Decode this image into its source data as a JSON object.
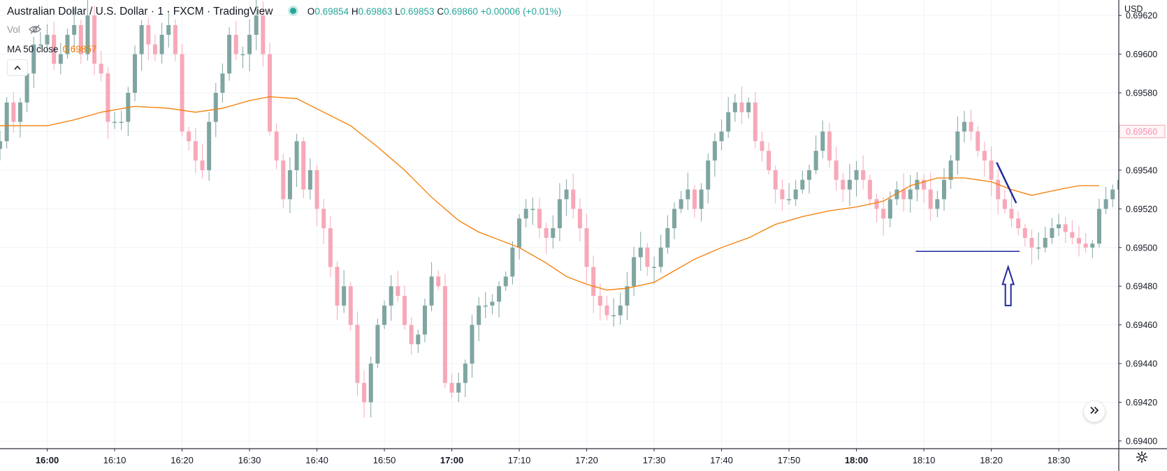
{
  "legend": {
    "title": "Australian Dollar / U.S. Dollar · 1 · FXCM · TradingView",
    "open_label": "O",
    "open": "0.69854",
    "high_label": "H",
    "high": "0.69863",
    "low_label": "L",
    "low": "0.69853",
    "close_label": "C",
    "close": "0.69860",
    "change": "+0.00006 (+0.01%)",
    "vol_label": "Vol",
    "ma_label": "MA 50 close",
    "ma_value": "0.69857"
  },
  "axis": {
    "currency": "USD",
    "price_ticks": [
      "0.69620",
      "0.69600",
      "0.69580",
      "0.69560",
      "0.69540",
      "0.69520",
      "0.69500",
      "0.69480",
      "0.69460",
      "0.69440",
      "0.69420",
      "0.69400"
    ],
    "last_price_label": "0.69560"
  },
  "icons": {
    "eye_off": "eye-off-icon",
    "collapse": "chevron-up-icon",
    "scroll_right": "double-chevron-right-icon",
    "settings": "gear-icon"
  },
  "colors": {
    "up": "#26a69a",
    "up_fill": "#7fa5a1",
    "down": "#f7a8b8",
    "ma": "#f57c00",
    "annotation": "#1f2a9e",
    "grid": "#f0f3fa"
  },
  "chart_data": {
    "type": "candlestick",
    "title": "Australian Dollar / U.S. Dollar · 1 · FXCM · TradingView",
    "interval": "1 minute",
    "ylim": [
      0.69396,
      0.69628
    ],
    "y_ticks": [
      0.6962,
      0.696,
      0.6958,
      0.6956,
      0.6954,
      0.6952,
      0.695,
      0.6948,
      0.6946,
      0.6944,
      0.6942,
      0.694
    ],
    "x_ticks": [
      {
        "time": "16:00",
        "bold": true,
        "minute": 0
      },
      {
        "time": "16:10",
        "bold": false,
        "minute": 10
      },
      {
        "time": "16:20",
        "bold": false,
        "minute": 20
      },
      {
        "time": "16:30",
        "bold": false,
        "minute": 30
      },
      {
        "time": "16:40",
        "bold": false,
        "minute": 40
      },
      {
        "time": "16:50",
        "bold": false,
        "minute": 50
      },
      {
        "time": "17:00",
        "bold": true,
        "minute": 60
      },
      {
        "time": "17:10",
        "bold": false,
        "minute": 70
      },
      {
        "time": "17:20",
        "bold": false,
        "minute": 80
      },
      {
        "time": "17:30",
        "bold": false,
        "minute": 90
      },
      {
        "time": "17:40",
        "bold": false,
        "minute": 100
      },
      {
        "time": "17:50",
        "bold": false,
        "minute": 110
      },
      {
        "time": "18:00",
        "bold": true,
        "minute": 120
      },
      {
        "time": "18:10",
        "bold": false,
        "minute": 130
      },
      {
        "time": "18:20",
        "bold": false,
        "minute": 140
      },
      {
        "time": "18:30",
        "bold": false,
        "minute": 150
      }
    ],
    "x_start_minute": -7,
    "last_price": 0.6956,
    "ohlc_anchors": [
      [
        0.69555,
        0.69575,
        0.69565,
        0.69575,
        0.6959,
        0.69605,
        0.69605,
        0.6961,
        0.69595,
        0.696,
        0.6961,
        0.69615,
        0.696
      ],
      [
        0.6962,
        0.69595,
        0.6959,
        0.69565,
        0.69565,
        0.69565,
        0.6958,
        0.696,
        0.69615,
        0.69605,
        0.696,
        0.6961,
        0.69615
      ],
      [
        0.696,
        0.6956,
        0.69555,
        0.69545,
        0.6954,
        0.69565,
        0.6958,
        0.6959,
        0.6961,
        0.696,
        0.696,
        0.6961,
        0.6962
      ],
      [
        0.696,
        0.6956,
        0.69545,
        0.69525,
        0.6954,
        0.69555,
        0.6953,
        0.6954,
        0.6952,
        0.6951,
        0.6949,
        0.6947,
        0.6948
      ],
      [
        0.6946,
        0.6943,
        0.6942,
        0.6944,
        0.6946,
        0.6947,
        0.6948,
        0.69475,
        0.6946,
        0.6945,
        0.69455,
        0.6947,
        0.69485
      ],
      [
        0.6948,
        0.6943,
        0.69425,
        0.6943,
        0.6944,
        0.6946,
        0.6947,
        0.6947,
        0.69472,
        0.6948,
        0.69485,
        0.695,
        0.69515
      ],
      [
        0.6952,
        0.6952,
        0.6951,
        0.69505,
        0.6951,
        0.69525,
        0.6953,
        0.6952,
        0.6951,
        0.6949,
        0.69475,
        0.6947,
        0.69465
      ],
      [
        0.69465,
        0.6947,
        0.6948,
        0.69495,
        0.695,
        0.6949,
        0.6949,
        0.695,
        0.6951,
        0.6952,
        0.69525,
        0.6953,
        0.6952
      ],
      [
        0.6953,
        0.69545,
        0.69555,
        0.6956,
        0.6957,
        0.69575,
        0.6957,
        0.69575,
        0.69555,
        0.6955,
        0.6954,
        0.6953,
        0.69525
      ],
      [
        0.69525,
        0.6953,
        0.69535,
        0.6954,
        0.6955,
        0.6956,
        0.69545,
        0.69535,
        0.6953,
        0.69535,
        0.6954,
        0.69535,
        0.69525
      ],
      [
        0.6952,
        0.69515,
        0.69525,
        0.6953,
        0.69525,
        0.6953,
        0.69535,
        0.6953,
        0.6952,
        0.69525,
        0.69535,
        0.69545,
        0.6956
      ],
      [
        0.69565,
        0.6956,
        0.6955,
        0.69545,
        0.69535,
        0.69525,
        0.6952,
        0.69515,
        0.6951,
        0.69505,
        0.695,
        0.695,
        0.69505
      ],
      [
        0.6951,
        0.69512,
        0.69508,
        0.69505,
        0.69502,
        0.695,
        0.69502,
        0.6952,
        0.69525,
        0.6953,
        0.69535,
        0.69545,
        0.69555
      ],
      [
        0.69565,
        0.6957,
        0.6956,
        0.69565,
        0.6956
      ]
    ],
    "moving_average": {
      "name": "MA 50 close",
      "points": [
        [
          -7,
          0.69563
        ],
        [
          -4,
          0.69563
        ],
        [
          0,
          0.69563
        ],
        [
          4,
          0.69566
        ],
        [
          8,
          0.6957
        ],
        [
          13,
          0.69573
        ],
        [
          18,
          0.69572
        ],
        [
          22,
          0.6957
        ],
        [
          26,
          0.69572
        ],
        [
          30,
          0.69576
        ],
        [
          33,
          0.69578
        ],
        [
          37,
          0.69577
        ],
        [
          41,
          0.6957
        ],
        [
          45,
          0.69563
        ],
        [
          49,
          0.69552
        ],
        [
          53,
          0.6954
        ],
        [
          57,
          0.69526
        ],
        [
          61,
          0.69514
        ],
        [
          64,
          0.69508
        ],
        [
          67,
          0.69504
        ],
        [
          70,
          0.695
        ],
        [
          74,
          0.69492
        ],
        [
          77,
          0.69485
        ],
        [
          80,
          0.69481
        ],
        [
          83,
          0.69478
        ],
        [
          86,
          0.69479
        ],
        [
          90,
          0.69482
        ],
        [
          93,
          0.69488
        ],
        [
          96,
          0.69494
        ],
        [
          100,
          0.695
        ],
        [
          104,
          0.69505
        ],
        [
          108,
          0.69512
        ],
        [
          112,
          0.69516
        ],
        [
          116,
          0.69519
        ],
        [
          120,
          0.69521
        ],
        [
          124,
          0.69524
        ],
        [
          128,
          0.69532
        ],
        [
          132,
          0.69536
        ],
        [
          136,
          0.69536
        ],
        [
          140,
          0.69534
        ],
        [
          143,
          0.6953
        ],
        [
          146,
          0.69527
        ],
        [
          150,
          0.6953
        ],
        [
          153,
          0.69532
        ],
        [
          156,
          0.69532
        ]
      ]
    },
    "annotations": [
      {
        "type": "trendline",
        "from": [
          140.8,
          0.69544
        ],
        "to": [
          143.7,
          0.69523
        ]
      },
      {
        "type": "horizontal_segment",
        "from": [
          128.8,
          0.69498
        ],
        "to": [
          144.2,
          0.69498
        ]
      },
      {
        "type": "up_arrow",
        "at_minute": 142.5,
        "tip": 0.6949,
        "base": 0.6947
      }
    ]
  }
}
